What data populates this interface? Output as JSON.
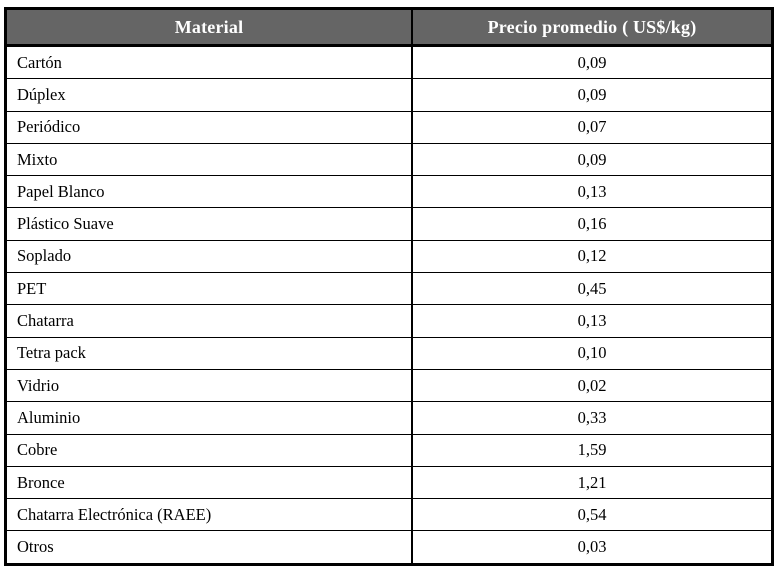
{
  "table": {
    "headers": {
      "material": "Material",
      "price": "Precio promedio ( US$/kg)"
    },
    "rows": [
      {
        "material": "Cartón",
        "price": "0,09"
      },
      {
        "material": "Dúplex",
        "price": "0,09"
      },
      {
        "material": "Periódico",
        "price": "0,07"
      },
      {
        "material": "Mixto",
        "price": "0,09"
      },
      {
        "material": "Papel Blanco",
        "price": "0,13"
      },
      {
        "material": "Plástico Suave",
        "price": "0,16"
      },
      {
        "material": "Soplado",
        "price": "0,12"
      },
      {
        "material": "PET",
        "price": "0,45"
      },
      {
        "material": "Chatarra",
        "price": "0,13"
      },
      {
        "material": "Tetra pack",
        "price": "0,10"
      },
      {
        "material": "Vidrio",
        "price": "0,02"
      },
      {
        "material": "Aluminio",
        "price": "0,33"
      },
      {
        "material": "Cobre",
        "price": "1,59"
      },
      {
        "material": "Bronce",
        "price": "1,21"
      },
      {
        "material": "Chatarra Electrónica (RAEE)",
        "price": "0,54"
      },
      {
        "material": "Otros",
        "price": "0,03"
      }
    ]
  },
  "colors": {
    "header_bg": "#656565",
    "header_text": "#ffffff",
    "border": "#000000",
    "row_bg": "#ffffff",
    "body_text": "#000000"
  }
}
